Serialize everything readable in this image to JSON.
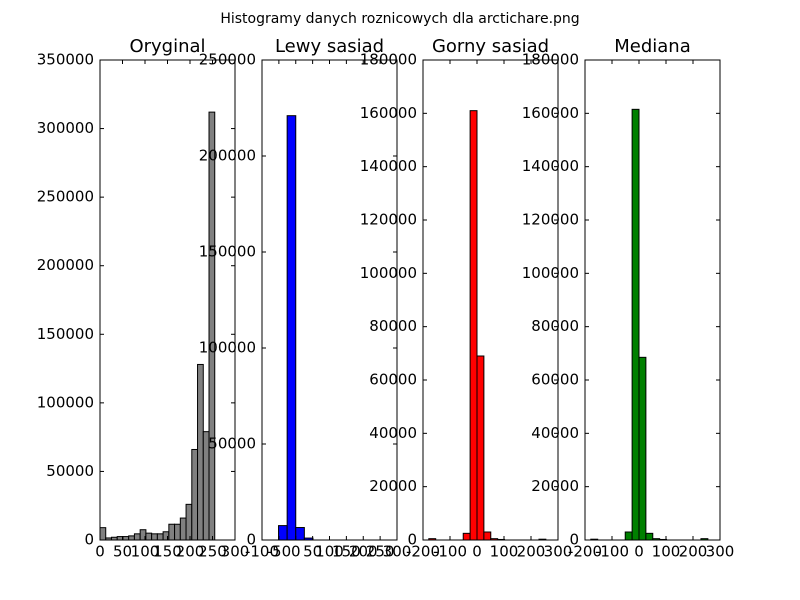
{
  "title": "Histogramy danych roznicowych dla arctichare.png",
  "chart_data": [
    {
      "type": "histogram",
      "title": "Oryginal",
      "bins": [
        0,
        12.75,
        25.5,
        38.25,
        51,
        63.75,
        76.5,
        89.25,
        102,
        114.75,
        127.5,
        140.25,
        153,
        165.75,
        178.5,
        191.25,
        204,
        216.75,
        229.5,
        242.25,
        255
      ],
      "values": [
        9000,
        1500,
        2000,
        2500,
        2500,
        3000,
        4500,
        7500,
        5000,
        4500,
        4500,
        6000,
        11500,
        11500,
        16000,
        26000,
        66000,
        128000,
        79000,
        312000
      ],
      "color": "#808080",
      "xlim": [
        0,
        300
      ],
      "xticks": [
        0,
        50,
        100,
        150,
        200,
        250,
        300
      ],
      "ylim": [
        0,
        350000
      ],
      "yticks": [
        0,
        50000,
        100000,
        150000,
        200000,
        250000,
        300000,
        350000
      ]
    },
    {
      "type": "histogram",
      "title": "Lewy sasiad",
      "bins": [
        -255,
        -229.5,
        -204,
        -178.5,
        -153,
        -127.5,
        -102,
        -76.5,
        -51,
        -25.5,
        0,
        25.5,
        51,
        76.5,
        102,
        127.5,
        153,
        178.5,
        204,
        229.5,
        255
      ],
      "values": [
        0,
        0,
        0,
        0,
        0,
        0,
        0,
        0,
        7500,
        221000,
        6500,
        1000,
        0,
        0,
        0,
        0,
        0,
        0,
        0,
        0
      ],
      "color": "#0000ff",
      "xlim": [
        -100,
        300
      ],
      "xticks": [
        -100,
        -50,
        0,
        50,
        100,
        150,
        200,
        250,
        300
      ],
      "ylim": [
        0,
        250000
      ],
      "yticks": [
        0,
        50000,
        100000,
        150000,
        200000,
        250000
      ]
    },
    {
      "type": "histogram",
      "title": "Gorny sasiad",
      "bins": [
        -255,
        -229.5,
        -204,
        -178.5,
        -153,
        -127.5,
        -102,
        -76.5,
        -51,
        -25.5,
        0,
        25.5,
        51,
        76.5,
        102,
        127.5,
        153,
        178.5,
        204,
        229.5,
        255
      ],
      "values": [
        0,
        0,
        0,
        500,
        0,
        0,
        0,
        0,
        2500,
        161000,
        69000,
        3000,
        500,
        200,
        0,
        0,
        0,
        0,
        0,
        300
      ],
      "color": "#ff0000",
      "xlim": [
        -200,
        300
      ],
      "xticks": [
        -200,
        -100,
        0,
        100,
        200,
        300
      ],
      "ylim": [
        0,
        180000
      ],
      "yticks": [
        0,
        20000,
        40000,
        60000,
        80000,
        100000,
        120000,
        140000,
        160000,
        180000
      ]
    },
    {
      "type": "histogram",
      "title": "Mediana",
      "bins": [
        -255,
        -229.5,
        -204,
        -178.5,
        -153,
        -127.5,
        -102,
        -76.5,
        -51,
        -25.5,
        0,
        25.5,
        51,
        76.5,
        102,
        127.5,
        153,
        178.5,
        204,
        229.5,
        255
      ],
      "values": [
        0,
        0,
        0,
        300,
        0,
        0,
        0,
        0,
        3000,
        161500,
        68500,
        2500,
        500,
        200,
        0,
        0,
        0,
        0,
        0,
        500
      ],
      "color": "#008000",
      "xlim": [
        -200,
        300
      ],
      "xticks": [
        -200,
        -100,
        0,
        100,
        200,
        300
      ],
      "ylim": [
        0,
        180000
      ],
      "yticks": [
        0,
        20000,
        40000,
        60000,
        80000,
        100000,
        120000,
        140000,
        160000,
        180000
      ]
    }
  ]
}
